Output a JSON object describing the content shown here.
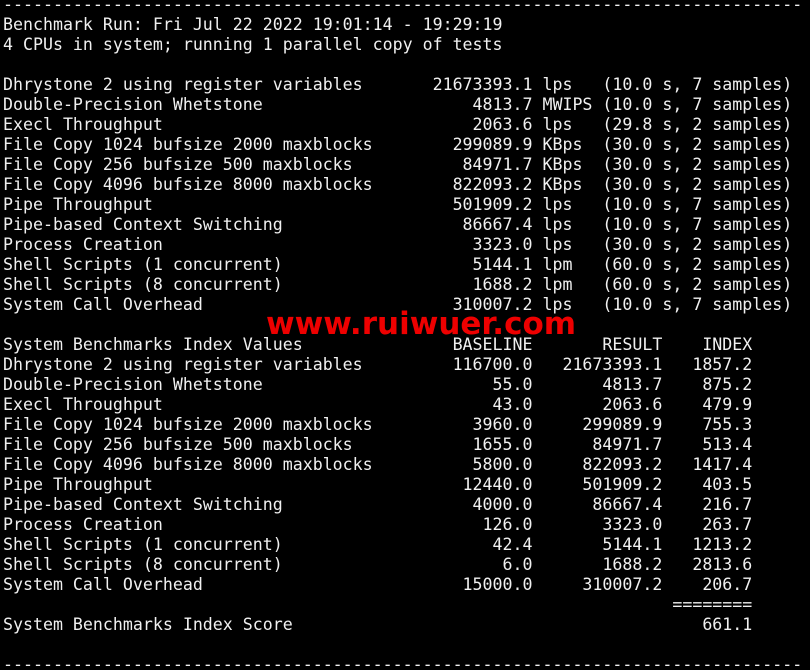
{
  "colors": {
    "background": "#000000",
    "terminal_text": "#f0f0f0",
    "watermark_red": "#ee0000"
  },
  "separator_line": "--------------------------------------------------------------------------------",
  "header": {
    "run_line": "Benchmark Run: Fri Jul 22 2022 19:01:14 - 19:29:19",
    "cpu_line": "4 CPUs in system; running 1 parallel copy of tests"
  },
  "results_table": {
    "rows": [
      {
        "name": "Dhrystone 2 using register variables",
        "value": "21673393.1",
        "unit": "lps",
        "samples": "(10.0 s, 7 samples)"
      },
      {
        "name": "Double-Precision Whetstone",
        "value": "4813.7",
        "unit": "MWIPS",
        "samples": "(10.0 s, 7 samples)"
      },
      {
        "name": "Execl Throughput",
        "value": "2063.6",
        "unit": "lps",
        "samples": "(29.8 s, 2 samples)"
      },
      {
        "name": "File Copy 1024 bufsize 2000 maxblocks",
        "value": "299089.9",
        "unit": "KBps",
        "samples": "(30.0 s, 2 samples)"
      },
      {
        "name": "File Copy 256 bufsize 500 maxblocks",
        "value": "84971.7",
        "unit": "KBps",
        "samples": "(30.0 s, 2 samples)"
      },
      {
        "name": "File Copy 4096 bufsize 8000 maxblocks",
        "value": "822093.2",
        "unit": "KBps",
        "samples": "(30.0 s, 2 samples)"
      },
      {
        "name": "Pipe Throughput",
        "value": "501909.2",
        "unit": "lps",
        "samples": "(10.0 s, 7 samples)"
      },
      {
        "name": "Pipe-based Context Switching",
        "value": "86667.4",
        "unit": "lps",
        "samples": "(10.0 s, 7 samples)"
      },
      {
        "name": "Process Creation",
        "value": "3323.0",
        "unit": "lps",
        "samples": "(30.0 s, 2 samples)"
      },
      {
        "name": "Shell Scripts (1 concurrent)",
        "value": "5144.1",
        "unit": "lpm",
        "samples": "(60.0 s, 2 samples)"
      },
      {
        "name": "Shell Scripts (8 concurrent)",
        "value": "1688.2",
        "unit": "lpm",
        "samples": "(60.0 s, 2 samples)"
      },
      {
        "name": "System Call Overhead",
        "value": "310007.2",
        "unit": "lps",
        "samples": "(10.0 s, 7 samples)"
      }
    ]
  },
  "index_table": {
    "title": "System Benchmarks Index Values",
    "col_headers": [
      "BASELINE",
      "RESULT",
      "INDEX"
    ],
    "rows": [
      {
        "name": "Dhrystone 2 using register variables",
        "baseline": "116700.0",
        "result": "21673393.1",
        "index": "1857.2"
      },
      {
        "name": "Double-Precision Whetstone",
        "baseline": "55.0",
        "result": "4813.7",
        "index": "875.2"
      },
      {
        "name": "Execl Throughput",
        "baseline": "43.0",
        "result": "2063.6",
        "index": "479.9"
      },
      {
        "name": "File Copy 1024 bufsize 2000 maxblocks",
        "baseline": "3960.0",
        "result": "299089.9",
        "index": "755.3"
      },
      {
        "name": "File Copy 256 bufsize 500 maxblocks",
        "baseline": "1655.0",
        "result": "84971.7",
        "index": "513.4"
      },
      {
        "name": "File Copy 4096 bufsize 8000 maxblocks",
        "baseline": "5800.0",
        "result": "822093.2",
        "index": "1417.4"
      },
      {
        "name": "Pipe Throughput",
        "baseline": "12440.0",
        "result": "501909.2",
        "index": "403.5"
      },
      {
        "name": "Pipe-based Context Switching",
        "baseline": "4000.0",
        "result": "86667.4",
        "index": "216.7"
      },
      {
        "name": "Process Creation",
        "baseline": "126.0",
        "result": "3323.0",
        "index": "263.7"
      },
      {
        "name": "Shell Scripts (1 concurrent)",
        "baseline": "42.4",
        "result": "5144.1",
        "index": "1213.2"
      },
      {
        "name": "Shell Scripts (8 concurrent)",
        "baseline": "6.0",
        "result": "1688.2",
        "index": "2813.6"
      },
      {
        "name": "System Call Overhead",
        "baseline": "15000.0",
        "result": "310007.2",
        "index": "206.7"
      }
    ],
    "total_separator": "========",
    "score_label": "System Benchmarks Index Score",
    "score_value": "661.1"
  },
  "watermark": {
    "text": "www.ruiwuer.com"
  }
}
